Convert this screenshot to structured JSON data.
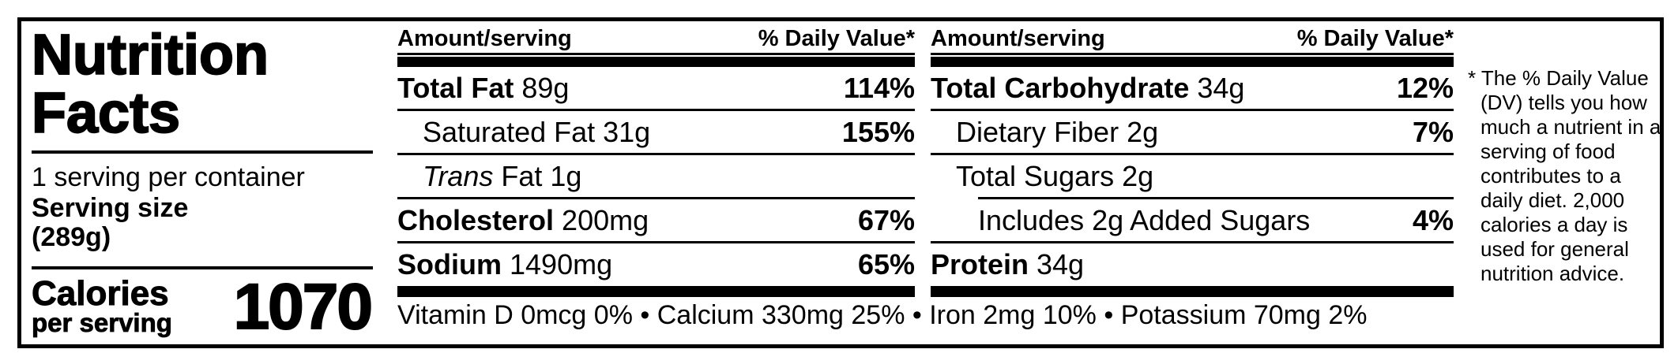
{
  "title": {
    "line1": "Nutrition",
    "line2": "Facts"
  },
  "serving_info": {
    "servings_per_container": "1 serving per container",
    "serving_size_label": "Serving size",
    "serving_size_value": "(289g)"
  },
  "calories": {
    "label": "Calories",
    "sublabel": "per serving",
    "value": "1070"
  },
  "columns": [
    {
      "header": {
        "amount": "Amount/serving",
        "daily_value": "% Daily Value*"
      },
      "rows": [
        {
          "name": "Total Fat",
          "amount": "89g",
          "dv": "114%"
        },
        {
          "name": "Saturated Fat",
          "amount": "31g",
          "dv": "155%"
        },
        {
          "name_italic": "Trans",
          "name": "Fat",
          "amount": "1g",
          "dv": ""
        },
        {
          "name": "Cholesterol",
          "amount": "200mg",
          "dv": "67%"
        },
        {
          "name": "Sodium",
          "amount": "1490mg",
          "dv": "65%"
        }
      ]
    },
    {
      "header": {
        "amount": "Amount/serving",
        "daily_value": "% Daily Value*"
      },
      "rows": [
        {
          "name": "Total Carbohydrate",
          "amount": "34g",
          "dv": "12%"
        },
        {
          "name": "Dietary Fiber",
          "amount": "2g",
          "dv": "7%"
        },
        {
          "name": "Total Sugars",
          "amount": "2g",
          "dv": ""
        },
        {
          "name": "Includes 2g Added Sugars",
          "amount": "",
          "dv": "4%"
        },
        {
          "name": "Protein",
          "amount": "34g",
          "dv": ""
        }
      ]
    }
  ],
  "micronutrients": "Vitamin D 0mcg 0% • Calcium 330mg 25% • Iron 2mg 10% • Potassium 70mg 2%",
  "footnote": "* The % Daily Value (DV) tells you how much a nutrient in a serving of food contributes to a daily diet. 2,000 calories a day is used for general nutrition advice.",
  "colors": {
    "ink": "#000000",
    "background": "#ffffff"
  }
}
